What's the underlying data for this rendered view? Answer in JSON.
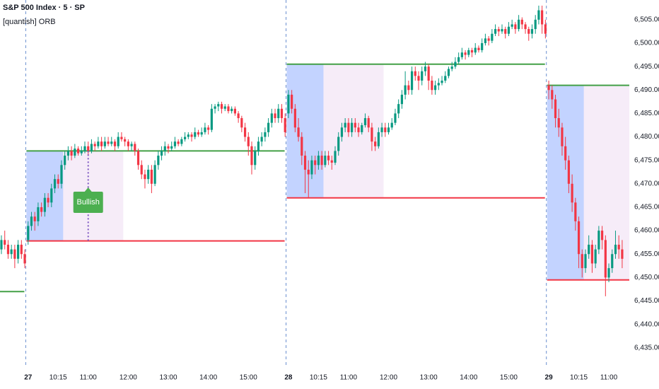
{
  "chart_data": {
    "type": "candlestick",
    "title": "S&P 500 Index · 5 · SP",
    "subtitle": "[quantish] ORB",
    "up_color": "#089981",
    "down_color": "#f23645",
    "orb_high_color": "#43a047",
    "orb_low_color": "#f23645",
    "ylim": [
      6431.5,
      6509.2
    ],
    "yticks": [
      {
        "value": 6435,
        "label": "6,435.00"
      },
      {
        "value": 6440,
        "label": "6,440.00"
      },
      {
        "value": 6445,
        "label": "6,445.00"
      },
      {
        "value": 6450,
        "label": "6,450.00"
      },
      {
        "value": 6455,
        "label": "6,455.00"
      },
      {
        "value": 6460,
        "label": "6,460.00"
      },
      {
        "value": 6465,
        "label": "6,465.00"
      },
      {
        "value": 6470,
        "label": "6,470.00"
      },
      {
        "value": 6475,
        "label": "6,475.00"
      },
      {
        "value": 6480,
        "label": "6,480.00"
      },
      {
        "value": 6485,
        "label": "6,485.00"
      },
      {
        "value": 6490,
        "label": "6,490.00"
      },
      {
        "value": 6495,
        "label": "6,495.00"
      },
      {
        "value": 6500,
        "label": "6,500.00"
      },
      {
        "value": 6505,
        "label": "6,505.00"
      }
    ],
    "xticks": [
      {
        "value": 8,
        "label": "27"
      },
      {
        "value": 17,
        "label": "10:15"
      },
      {
        "value": 26,
        "label": "11:00"
      },
      {
        "value": 38,
        "label": "12:00"
      },
      {
        "value": 50,
        "label": "13:00"
      },
      {
        "value": 62,
        "label": "14:00"
      },
      {
        "value": 74,
        "label": "15:00"
      },
      {
        "value": 86,
        "label": "28"
      },
      {
        "value": 95,
        "label": "10:15"
      },
      {
        "value": 104,
        "label": "11:00"
      },
      {
        "value": 116,
        "label": "12:00"
      },
      {
        "value": 128,
        "label": "13:00"
      },
      {
        "value": 140,
        "label": "14:00"
      },
      {
        "value": 152,
        "label": "15:00"
      },
      {
        "value": 164,
        "label": "29"
      },
      {
        "value": 173,
        "label": "10:15"
      },
      {
        "value": 182,
        "label": "11:00"
      }
    ],
    "sessions": [
      {
        "start": 8,
        "orb_high": 6477,
        "orb_low": 6457.8
      },
      {
        "start": 86,
        "orb_high": 6495.5,
        "orb_low": 6467
      },
      {
        "start": 164,
        "orb_high": 6491,
        "orb_low": 6449.5
      }
    ],
    "prior_orb_high": 6447,
    "signals": [
      {
        "label": "Bullish",
        "index": 26
      }
    ],
    "candles": [
      [
        6456,
        6459,
        6455,
        6458
      ],
      [
        6458,
        6460,
        6456,
        6457
      ],
      [
        6457,
        6458,
        6454,
        6455
      ],
      [
        6455,
        6457,
        6454,
        6456
      ],
      [
        6456,
        6457,
        6452,
        6454
      ],
      [
        6454,
        6458,
        6453,
        6457
      ],
      [
        6457,
        6458,
        6454,
        6455
      ],
      [
        6455,
        6456,
        6452,
        6453
      ],
      [
        6458,
        6462,
        6457,
        6461
      ],
      [
        6461,
        6464,
        6460,
        6463
      ],
      [
        6463,
        6464,
        6460,
        6462
      ],
      [
        6462,
        6466,
        6461,
        6465
      ],
      [
        6465,
        6466,
        6463,
        6464
      ],
      [
        6464,
        6468,
        6463,
        6467
      ],
      [
        6467,
        6468,
        6465,
        6466
      ],
      [
        6466,
        6470,
        6465,
        6469
      ],
      [
        6469,
        6472,
        6468,
        6471
      ],
      [
        6471,
        6472,
        6469,
        6470
      ],
      [
        6470,
        6475,
        6469,
        6474
      ],
      [
        6474,
        6477,
        6473,
        6476
      ],
      [
        6476,
        6478,
        6475,
        6477
      ],
      [
        6477,
        6478,
        6475,
        6476
      ],
      [
        6476,
        6478.5,
        6475.5,
        6477.5
      ],
      [
        6477.5,
        6478,
        6476,
        6476.5
      ],
      [
        6476.5,
        6478,
        6476,
        6477
      ],
      [
        6477,
        6479,
        6476.5,
        6478
      ],
      [
        6478,
        6479,
        6476,
        6477
      ],
      [
        6477,
        6479.5,
        6476.5,
        6478.5
      ],
      [
        6478.5,
        6479,
        6477,
        6478
      ],
      [
        6478,
        6480,
        6477.5,
        6479
      ],
      [
        6479,
        6480,
        6477,
        6478
      ],
      [
        6478,
        6480,
        6477.5,
        6479
      ],
      [
        6479,
        6480,
        6478,
        6478.5
      ],
      [
        6478.5,
        6480,
        6478,
        6479
      ],
      [
        6479,
        6479.5,
        6477,
        6478
      ],
      [
        6478,
        6481,
        6477.5,
        6480
      ],
      [
        6480,
        6481,
        6479,
        6479.5
      ],
      [
        6479.5,
        6480,
        6478,
        6479
      ],
      [
        6479,
        6479.5,
        6477,
        6478
      ],
      [
        6478,
        6479,
        6477,
        6478.5
      ],
      [
        6478.5,
        6479,
        6476,
        6477
      ],
      [
        6477,
        6477.5,
        6473,
        6474
      ],
      [
        6474,
        6475,
        6471,
        6472
      ],
      [
        6472,
        6473,
        6469,
        6471
      ],
      [
        6471,
        6474,
        6470,
        6473
      ],
      [
        6473,
        6474,
        6468,
        6470
      ],
      [
        6470,
        6475,
        6469.5,
        6474
      ],
      [
        6474,
        6477,
        6473,
        6476
      ],
      [
        6476,
        6478,
        6475,
        6477
      ],
      [
        6477,
        6479,
        6476,
        6478
      ],
      [
        6478,
        6478.5,
        6476.5,
        6477.5
      ],
      [
        6477.5,
        6479,
        6477,
        6478
      ],
      [
        6478,
        6480,
        6477.5,
        6479
      ],
      [
        6479,
        6479.5,
        6478,
        6478.5
      ],
      [
        6478.5,
        6480,
        6478,
        6479.5
      ],
      [
        6479.5,
        6481,
        6479,
        6480
      ],
      [
        6480,
        6481,
        6479.5,
        6480.5
      ],
      [
        6480.5,
        6481,
        6479,
        6480
      ],
      [
        6480,
        6482,
        6479.5,
        6481
      ],
      [
        6481,
        6481.5,
        6480,
        6480.5
      ],
      [
        6480.5,
        6482,
        6480,
        6481
      ],
      [
        6481,
        6483,
        6480.5,
        6482
      ],
      [
        6482,
        6482.5,
        6480.5,
        6481.5
      ],
      [
        6481.5,
        6487,
        6481,
        6486
      ],
      [
        6486,
        6487,
        6485,
        6486.5
      ],
      [
        6486.5,
        6487.5,
        6485.5,
        6487
      ],
      [
        6487,
        6487.5,
        6485,
        6486
      ],
      [
        6486,
        6487,
        6485.5,
        6486.5
      ],
      [
        6486.5,
        6487,
        6485,
        6485.5
      ],
      [
        6485.5,
        6486.5,
        6485,
        6486
      ],
      [
        6486,
        6486.5,
        6484.5,
        6485
      ],
      [
        6485,
        6485.5,
        6483,
        6484
      ],
      [
        6484,
        6484.5,
        6481,
        6482
      ],
      [
        6482,
        6483,
        6479,
        6480
      ],
      [
        6480,
        6481,
        6476,
        6478
      ],
      [
        6478,
        6479,
        6472,
        6474
      ],
      [
        6474,
        6478,
        6473,
        6477
      ],
      [
        6477,
        6480,
        6476,
        6479
      ],
      [
        6479,
        6481,
        6478,
        6480
      ],
      [
        6480,
        6482,
        6479,
        6481
      ],
      [
        6481,
        6484,
        6480,
        6483
      ],
      [
        6483,
        6486,
        6482,
        6485
      ],
      [
        6485,
        6486,
        6483,
        6484
      ],
      [
        6484,
        6487,
        6483,
        6486
      ],
      [
        6486,
        6487,
        6483,
        6484
      ],
      [
        6484,
        6485,
        6480,
        6481
      ],
      [
        6485,
        6490,
        6484,
        6489
      ],
      [
        6489,
        6490,
        6485,
        6486
      ],
      [
        6486,
        6487,
        6481,
        6482
      ],
      [
        6482,
        6484,
        6479,
        6480
      ],
      [
        6480,
        6481,
        6474,
        6476
      ],
      [
        6476,
        6477,
        6468,
        6473
      ],
      [
        6473,
        6475,
        6467,
        6472
      ],
      [
        6472,
        6476,
        6471,
        6475
      ],
      [
        6475,
        6476,
        6472,
        6474
      ],
      [
        6474,
        6477,
        6473,
        6476
      ],
      [
        6476,
        6477,
        6473,
        6474
      ],
      [
        6474,
        6477,
        6473.5,
        6476
      ],
      [
        6476,
        6477,
        6474,
        6475
      ],
      [
        6475,
        6476,
        6473,
        6474.5
      ],
      [
        6474.5,
        6478,
        6474,
        6477
      ],
      [
        6477,
        6481,
        6476,
        6480
      ],
      [
        6480,
        6483,
        6479,
        6482
      ],
      [
        6482,
        6484,
        6481,
        6483
      ],
      [
        6483,
        6484,
        6480,
        6481
      ],
      [
        6481,
        6484,
        6480,
        6483
      ],
      [
        6483,
        6484,
        6481,
        6482
      ],
      [
        6482,
        6483,
        6480,
        6481
      ],
      [
        6481,
        6483,
        6480.5,
        6482.5
      ],
      [
        6482.5,
        6485,
        6482,
        6484
      ],
      [
        6484,
        6484.5,
        6481,
        6482
      ],
      [
        6482,
        6483,
        6477,
        6479
      ],
      [
        6479,
        6480,
        6477,
        6478
      ],
      [
        6478,
        6482,
        6477.5,
        6481
      ],
      [
        6481,
        6483,
        6480,
        6482
      ],
      [
        6482,
        6483,
        6480,
        6481
      ],
      [
        6481,
        6483,
        6480.5,
        6482
      ],
      [
        6482,
        6484,
        6481.5,
        6483
      ],
      [
        6483,
        6486,
        6482.5,
        6485
      ],
      [
        6485,
        6488,
        6484,
        6487
      ],
      [
        6487,
        6490,
        6486,
        6489
      ],
      [
        6489,
        6494,
        6488,
        6491
      ],
      [
        6491,
        6492,
        6489,
        6490
      ],
      [
        6490,
        6495,
        6489,
        6494
      ],
      [
        6494,
        6495,
        6492,
        6493
      ],
      [
        6493,
        6494,
        6490,
        6492
      ],
      [
        6492,
        6495,
        6491,
        6494
      ],
      [
        6494,
        6496,
        6493,
        6495
      ],
      [
        6495,
        6495.5,
        6490,
        6492
      ],
      [
        6492,
        6493,
        6489,
        6490
      ],
      [
        6490,
        6492,
        6489,
        6491
      ],
      [
        6491,
        6492.5,
        6490,
        6491.5
      ],
      [
        6491.5,
        6493,
        6491,
        6492
      ],
      [
        6492,
        6494,
        6491.5,
        6493
      ],
      [
        6493,
        6495,
        6492.5,
        6494.5
      ],
      [
        6494.5,
        6496,
        6494,
        6495
      ],
      [
        6495,
        6497,
        6494.5,
        6496
      ],
      [
        6496,
        6498,
        6495.5,
        6497
      ],
      [
        6497,
        6499,
        6496.5,
        6498
      ],
      [
        6498,
        6498.5,
        6496.5,
        6497.5
      ],
      [
        6497.5,
        6499,
        6497,
        6498.5
      ],
      [
        6498.5,
        6499,
        6497,
        6498
      ],
      [
        6498,
        6500,
        6497.5,
        6499
      ],
      [
        6499,
        6499.5,
        6498,
        6498.5
      ],
      [
        6498.5,
        6501,
        6498,
        6500
      ],
      [
        6500,
        6502,
        6499.5,
        6501
      ],
      [
        6501,
        6501.5,
        6499.5,
        6500.5
      ],
      [
        6500.5,
        6503,
        6500,
        6502
      ],
      [
        6502,
        6504,
        6501.5,
        6503
      ],
      [
        6503,
        6503.5,
        6501.5,
        6502.5
      ],
      [
        6502.5,
        6504,
        6502,
        6503
      ],
      [
        6503,
        6503.5,
        6501,
        6502
      ],
      [
        6502,
        6504.5,
        6501.5,
        6503.5
      ],
      [
        6503.5,
        6505,
        6503,
        6504
      ],
      [
        6504,
        6504.5,
        6502,
        6503
      ],
      [
        6503,
        6506,
        6502.5,
        6505
      ],
      [
        6505,
        6505.5,
        6503,
        6504
      ],
      [
        6504,
        6504.5,
        6502,
        6503
      ],
      [
        6503,
        6503.5,
        6500.5,
        6502
      ],
      [
        6502,
        6504,
        6501,
        6503
      ],
      [
        6503,
        6506,
        6502,
        6505
      ],
      [
        6505,
        6508,
        6504,
        6507
      ],
      [
        6507,
        6508,
        6502,
        6504
      ],
      [
        6504,
        6505,
        6501,
        6502
      ],
      [
        6491,
        6492,
        6488,
        6490
      ],
      [
        6490,
        6491,
        6486,
        6488
      ],
      [
        6488,
        6489,
        6482,
        6484
      ],
      [
        6484,
        6486,
        6480,
        6482
      ],
      [
        6482,
        6483,
        6476,
        6478
      ],
      [
        6478,
        6480,
        6473,
        6475
      ],
      [
        6475,
        6476,
        6468,
        6470
      ],
      [
        6470,
        6472,
        6464,
        6466
      ],
      [
        6466,
        6467,
        6460,
        6462
      ],
      [
        6462,
        6463,
        6452,
        6455
      ],
      [
        6455,
        6456,
        6450,
        6452
      ],
      [
        6452,
        6456,
        6451,
        6455
      ],
      [
        6455,
        6459,
        6454,
        6457
      ],
      [
        6457,
        6458,
        6451,
        6453
      ],
      [
        6453,
        6457,
        6452,
        6456
      ],
      [
        6456,
        6461,
        6455,
        6460
      ],
      [
        6460,
        6461,
        6456,
        6458
      ],
      [
        6458,
        6459,
        6446,
        6450
      ],
      [
        6450,
        6453,
        6449,
        6452
      ],
      [
        6452,
        6456,
        6451,
        6455
      ],
      [
        6455,
        6460,
        6454,
        6457
      ],
      [
        6457,
        6459,
        6454,
        6456
      ],
      [
        6456,
        6458,
        6452,
        6454
      ]
    ]
  }
}
